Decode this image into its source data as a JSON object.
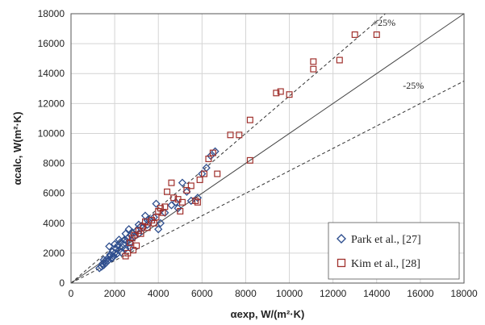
{
  "chart_data": {
    "type": "scatter",
    "title": "",
    "xlabel": "αexp, W/(m²·K)",
    "ylabel": "αcalc, W(m²·K)",
    "xlim": [
      0,
      18000
    ],
    "ylim": [
      0,
      18000
    ],
    "xticks": [
      "0",
      "2000",
      "4000",
      "6000",
      "8000",
      "10000",
      "12000",
      "14000",
      "16000",
      "18000"
    ],
    "yticks": [
      "0",
      "2000",
      "4000",
      "6000",
      "8000",
      "10000",
      "12000",
      "14000",
      "16000",
      "18000"
    ],
    "grid": true,
    "legend_position": "bottom-right",
    "reference_lines": [
      {
        "label": "",
        "slope": 1.0,
        "style": "solid"
      },
      {
        "label": "+25%",
        "slope": 1.25,
        "style": "dashed"
      },
      {
        "label": "-25%",
        "slope": 0.75,
        "style": "dashed"
      }
    ],
    "series": [
      {
        "name": "Park et al., [27]",
        "marker": "diamond",
        "color": "#2f4f8f",
        "points": [
          [
            1300,
            1000
          ],
          [
            1400,
            1100
          ],
          [
            1450,
            1300
          ],
          [
            1500,
            1200
          ],
          [
            1550,
            1450
          ],
          [
            1600,
            1350
          ],
          [
            1650,
            1600
          ],
          [
            1700,
            1500
          ],
          [
            1750,
            2450
          ],
          [
            1750,
            1750
          ],
          [
            1800,
            1900
          ],
          [
            1850,
            1650
          ],
          [
            1900,
            2100
          ],
          [
            1950,
            1800
          ],
          [
            2000,
            2000
          ],
          [
            2050,
            2300
          ],
          [
            2100,
            1950
          ],
          [
            2150,
            2500
          ],
          [
            2200,
            2200
          ],
          [
            2250,
            2700
          ],
          [
            2300,
            2050
          ],
          [
            2350,
            2400
          ],
          [
            2400,
            2600
          ],
          [
            2450,
            2900
          ],
          [
            2500,
            2300
          ],
          [
            2550,
            2800
          ],
          [
            2600,
            3000
          ],
          [
            2650,
            3600
          ],
          [
            2700,
            2700
          ],
          [
            2750,
            3200
          ],
          [
            2800,
            3400
          ],
          [
            2900,
            3100
          ],
          [
            3000,
            3500
          ],
          [
            3100,
            3300
          ],
          [
            3200,
            3800
          ],
          [
            3300,
            3700
          ],
          [
            3400,
            4500
          ],
          [
            3500,
            3900
          ],
          [
            3600,
            4200
          ],
          [
            3800,
            4400
          ],
          [
            3900,
            5300
          ],
          [
            4000,
            3600
          ],
          [
            4100,
            4000
          ],
          [
            4300,
            4700
          ],
          [
            4600,
            5200
          ],
          [
            4800,
            5400
          ],
          [
            4900,
            5000
          ],
          [
            5100,
            6700
          ],
          [
            5300,
            6100
          ],
          [
            5500,
            5500
          ],
          [
            5800,
            5700
          ],
          [
            6000,
            7300
          ],
          [
            6200,
            7700
          ],
          [
            6400,
            8500
          ],
          [
            6600,
            8800
          ],
          [
            1500,
            1550
          ],
          [
            1900,
            1700
          ],
          [
            2000,
            2600
          ],
          [
            2200,
            2900
          ],
          [
            2500,
            3300
          ],
          [
            2700,
            2350
          ],
          [
            3100,
            3900
          ],
          [
            3500,
            4200
          ]
        ]
      },
      {
        "name": "Kim et al., [28]",
        "marker": "square",
        "color": "#a0302c",
        "points": [
          [
            2500,
            1800
          ],
          [
            2600,
            2000
          ],
          [
            2700,
            2700
          ],
          [
            2800,
            3000
          ],
          [
            2850,
            2200
          ],
          [
            2900,
            3200
          ],
          [
            3000,
            2500
          ],
          [
            3100,
            3500
          ],
          [
            3200,
            3300
          ],
          [
            3300,
            3800
          ],
          [
            3500,
            3700
          ],
          [
            3700,
            4200
          ],
          [
            3800,
            4000
          ],
          [
            3900,
            4400
          ],
          [
            4000,
            4800
          ],
          [
            4100,
            5000
          ],
          [
            4200,
            4700
          ],
          [
            4400,
            6100
          ],
          [
            4600,
            6700
          ],
          [
            4700,
            5700
          ],
          [
            4900,
            5600
          ],
          [
            5000,
            4800
          ],
          [
            5100,
            5400
          ],
          [
            5300,
            6200
          ],
          [
            5500,
            6500
          ],
          [
            5700,
            5500
          ],
          [
            5900,
            6900
          ],
          [
            6100,
            7300
          ],
          [
            6300,
            8300
          ],
          [
            6500,
            8700
          ],
          [
            6700,
            7300
          ],
          [
            7300,
            9900
          ],
          [
            7700,
            9900
          ],
          [
            8200,
            10900
          ],
          [
            8200,
            8200
          ],
          [
            9400,
            12700
          ],
          [
            9600,
            12800
          ],
          [
            10000,
            12600
          ],
          [
            11100,
            14800
          ],
          [
            11100,
            14300
          ],
          [
            12300,
            14900
          ],
          [
            13000,
            16600
          ],
          [
            14000,
            16600
          ],
          [
            3400,
            4100
          ],
          [
            4300,
            5100
          ],
          [
            5800,
            5400
          ]
        ]
      }
    ]
  }
}
